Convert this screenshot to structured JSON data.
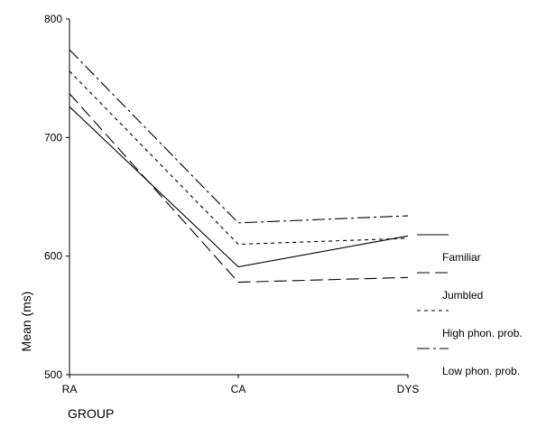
{
  "chart_data": {
    "type": "line",
    "title": "",
    "xlabel": "GROUP",
    "ylabel": "Mean (ms)",
    "categories": [
      "RA",
      "CA",
      "DYS"
    ],
    "ylim": [
      500,
      800
    ],
    "yticks": [
      500,
      600,
      700,
      800
    ],
    "grid": false,
    "legend_position": "right",
    "series": [
      {
        "name": "Familiar",
        "style": "solid",
        "values": [
          726,
          591,
          617
        ]
      },
      {
        "name": "Jumbled",
        "style": "long-dash",
        "values": [
          737,
          578,
          582
        ]
      },
      {
        "name": "High phon. prob.",
        "style": "short-dash",
        "values": [
          756,
          610,
          615
        ]
      },
      {
        "name": "Low phon. prob.",
        "style": "dash-dot",
        "values": [
          774,
          628,
          634
        ]
      }
    ],
    "colors": {
      "line": "#000000",
      "background": "#ffffff"
    }
  }
}
